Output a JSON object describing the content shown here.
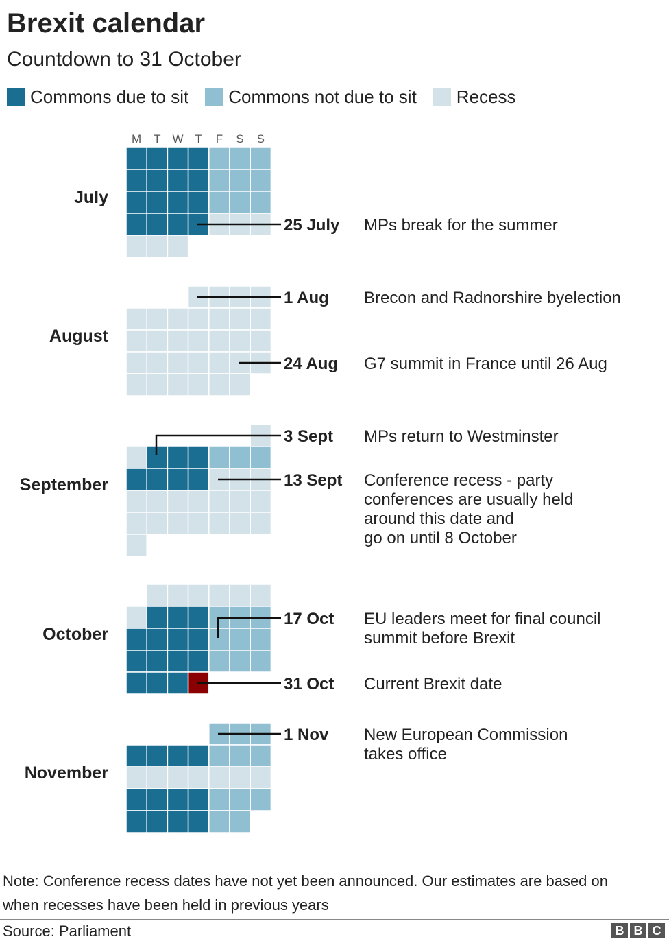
{
  "title": "Brexit calendar",
  "subtitle": "Countdown to 31 October",
  "legend": [
    {
      "label": "Commons due to sit",
      "color": "#1a6e91"
    },
    {
      "label": "Commons not due to sit",
      "color": "#8fbfd1"
    },
    {
      "label": "Recess",
      "color": "#d2e2e8"
    }
  ],
  "note": "Note: Conference recess dates have not yet been announced. Our estimates are based on when recesses have been held in previous years",
  "source": "Source: Parliament",
  "brand": [
    "B",
    "B",
    "C"
  ],
  "chart_data": {
    "type": "calendar-heatmap",
    "title": "Brexit calendar",
    "subtitle": "Countdown to 31 October",
    "weekdays": [
      "M",
      "T",
      "W",
      "T",
      "F",
      "S",
      "S"
    ],
    "status_colors": {
      "sit": "#1a6e91",
      "nosit": "#8fbfd1",
      "recess": "#d2e2e8",
      "brexit": "#8b0000"
    },
    "months": [
      {
        "name": "July",
        "weeks": [
          [
            "sit",
            "sit",
            "sit",
            "sit",
            "nosit",
            "nosit",
            "nosit"
          ],
          [
            "sit",
            "sit",
            "sit",
            "sit",
            "nosit",
            "nosit",
            "nosit"
          ],
          [
            "sit",
            "sit",
            "sit",
            "sit",
            "nosit",
            "nosit",
            "nosit"
          ],
          [
            "sit",
            "sit",
            "sit",
            "sit",
            "recess",
            "recess",
            "recess"
          ],
          [
            "recess",
            "recess",
            "recess",
            null,
            null,
            null,
            null
          ]
        ]
      },
      {
        "name": "August",
        "weeks": [
          [
            null,
            null,
            null,
            "recess",
            "recess",
            "recess",
            "recess"
          ],
          [
            "recess",
            "recess",
            "recess",
            "recess",
            "recess",
            "recess",
            "recess"
          ],
          [
            "recess",
            "recess",
            "recess",
            "recess",
            "recess",
            "recess",
            "recess"
          ],
          [
            "recess",
            "recess",
            "recess",
            "recess",
            "recess",
            "recess",
            "recess"
          ],
          [
            "recess",
            "recess",
            "recess",
            "recess",
            "recess",
            "recess",
            null
          ]
        ]
      },
      {
        "name": "September",
        "weeks": [
          [
            null,
            null,
            null,
            null,
            null,
            null,
            "recess"
          ],
          [
            "recess",
            "sit",
            "sit",
            "sit",
            "nosit",
            "nosit",
            "nosit"
          ],
          [
            "sit",
            "sit",
            "sit",
            "sit",
            "recess",
            "recess",
            "recess"
          ],
          [
            "recess",
            "recess",
            "recess",
            "recess",
            "recess",
            "recess",
            "recess"
          ],
          [
            "recess",
            "recess",
            "recess",
            "recess",
            "recess",
            "recess",
            "recess"
          ],
          [
            "recess",
            null,
            null,
            null,
            null,
            null,
            null
          ]
        ]
      },
      {
        "name": "October",
        "weeks": [
          [
            null,
            "recess",
            "recess",
            "recess",
            "recess",
            "recess",
            "recess"
          ],
          [
            "recess",
            "sit",
            "sit",
            "sit",
            "nosit",
            "nosit",
            "nosit"
          ],
          [
            "sit",
            "sit",
            "sit",
            "sit",
            "nosit",
            "nosit",
            "nosit"
          ],
          [
            "sit",
            "sit",
            "sit",
            "sit",
            "nosit",
            "nosit",
            "nosit"
          ],
          [
            "sit",
            "sit",
            "sit",
            "brexit",
            null,
            null,
            null
          ]
        ]
      },
      {
        "name": "November",
        "weeks": [
          [
            null,
            null,
            null,
            null,
            "nosit",
            "nosit",
            "nosit"
          ],
          [
            "sit",
            "sit",
            "sit",
            "sit",
            "nosit",
            "nosit",
            "nosit"
          ],
          [
            "recess",
            "recess",
            "recess",
            "recess",
            "recess",
            "recess",
            "recess"
          ],
          [
            "sit",
            "sit",
            "sit",
            "sit",
            "nosit",
            "nosit",
            "nosit"
          ],
          [
            "sit",
            "sit",
            "sit",
            "sit",
            "nosit",
            "nosit",
            null
          ]
        ]
      }
    ],
    "annotations": [
      {
        "month": "July",
        "date": "25 July",
        "text": [
          "MPs break for the summer"
        ]
      },
      {
        "month": "August",
        "date": "1 Aug",
        "text": [
          "Brecon and Radnorshire byelection"
        ]
      },
      {
        "month": "August",
        "date": "24 Aug",
        "text": [
          "G7 summit in France until 26 Aug"
        ]
      },
      {
        "month": "September",
        "date": "3 Sept",
        "text": [
          "MPs return to Westminster"
        ]
      },
      {
        "month": "September",
        "date": "13 Sept",
        "text": [
          "Conference recess - party",
          "conferences are usually held",
          "around this date and",
          "go on until 8 October"
        ]
      },
      {
        "month": "October",
        "date": "17 Oct",
        "text": [
          "EU leaders meet for final council",
          "summit before Brexit"
        ]
      },
      {
        "month": "October",
        "date": "31 Oct",
        "text": [
          "Current Brexit date"
        ]
      },
      {
        "month": "November",
        "date": "1 Nov",
        "text": [
          "New European Commission",
          "takes office"
        ]
      }
    ]
  }
}
